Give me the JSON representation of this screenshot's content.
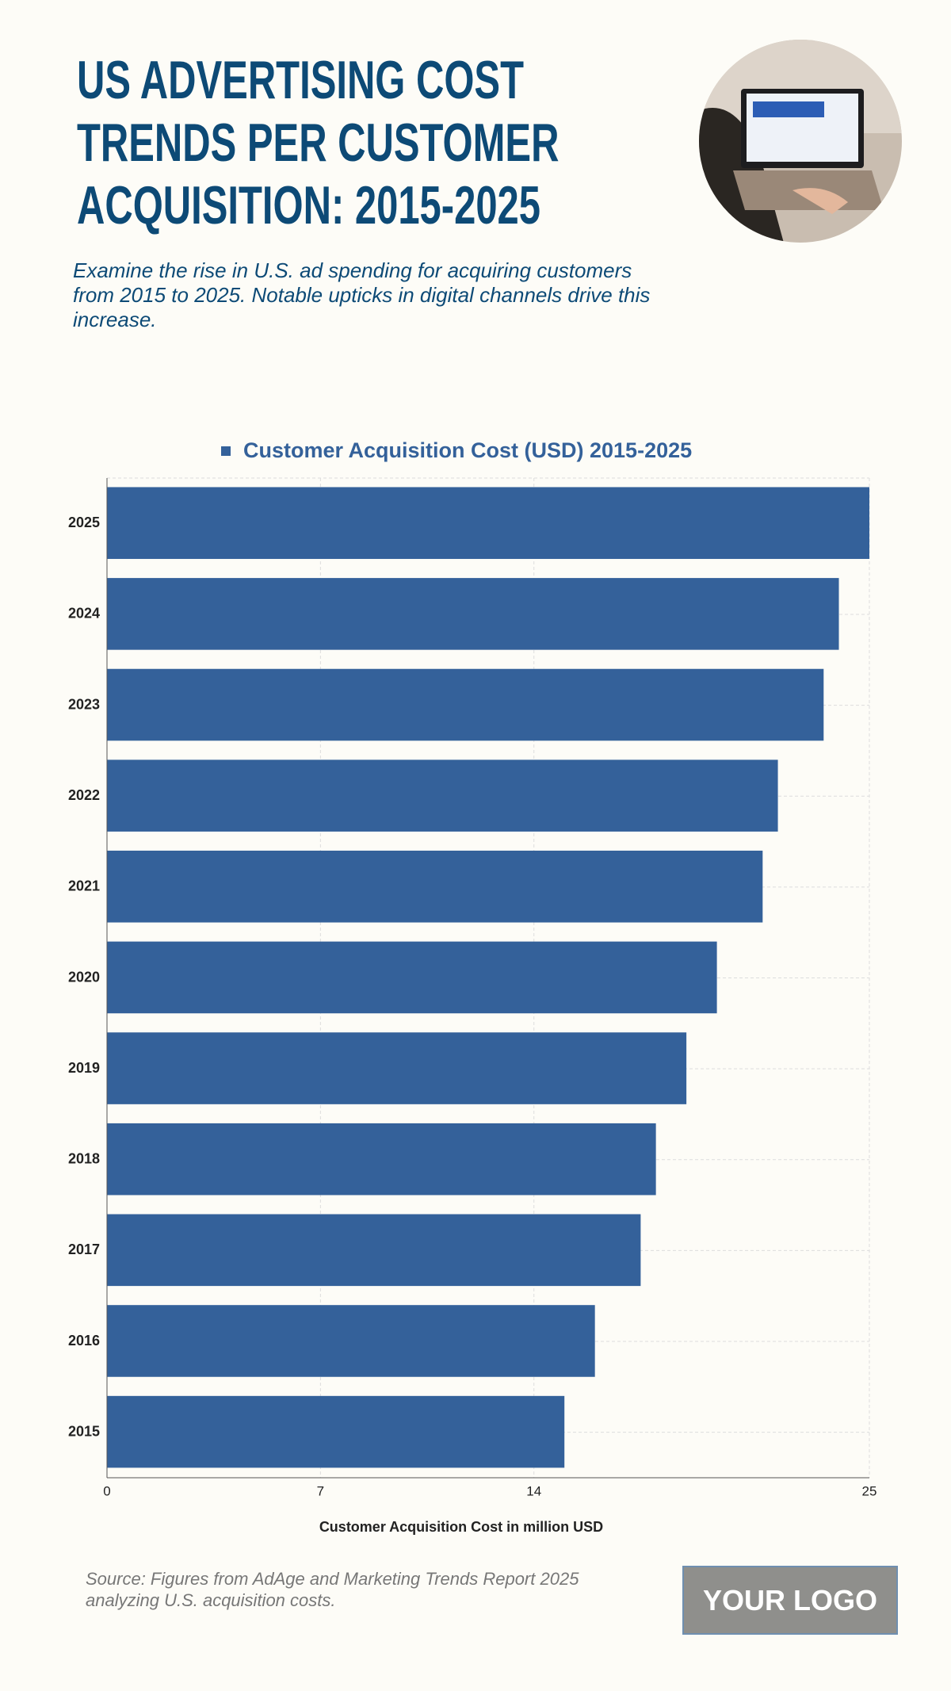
{
  "header": {
    "title": "US ADVERTISING COST TRENDS PER CUSTOMER ACQUISITION: 2015-2025",
    "subtitle": "Examine the rise in U.S. ad spending for acquiring customers from 2015 to 2025. Notable upticks in digital channels drive this increase."
  },
  "chart_data": {
    "type": "bar",
    "orientation": "horizontal",
    "categories": [
      "2025",
      "2024",
      "2023",
      "2022",
      "2021",
      "2020",
      "2019",
      "2018",
      "2017",
      "2016",
      "2015"
    ],
    "series": [
      {
        "name": "Customer Acquisition Cost (USD) 2015-2025",
        "color": "#34619a",
        "values": [
          25,
          24,
          23.5,
          22,
          21.5,
          20,
          19,
          18,
          17.5,
          16,
          15
        ]
      }
    ],
    "xlabel": "Customer Acquisition Cost in million USD",
    "xlim": [
      0,
      25
    ],
    "xticks": [
      0,
      7,
      14,
      25
    ],
    "grid": true,
    "legend": "top"
  },
  "footer": {
    "source": "Source: Figures from AdAge and Marketing Trends Report 2025 analyzing U.S. acquisition costs.",
    "logo": "YOUR LOGO"
  }
}
